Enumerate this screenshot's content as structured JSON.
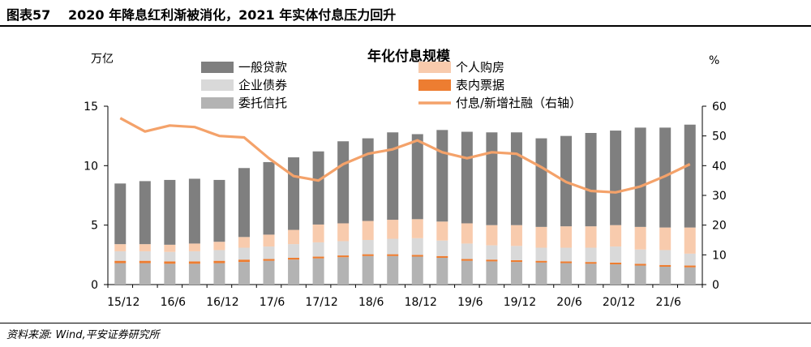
{
  "header": {
    "figure_label": "图表57",
    "figure_title": "2020 年降息红利渐被消化，2021 年实体付息压力回升"
  },
  "footer": {
    "source": "资料来源: Wind,平安证券研究所"
  },
  "chart_data": {
    "type": "bar",
    "stacked": true,
    "title": "年化付息规模",
    "y_left_unit": "万亿",
    "y_right_unit": "%",
    "ylim": [
      0,
      15
    ],
    "ylim_right": [
      0,
      60
    ],
    "yticks": [
      "0",
      "5",
      "10",
      "15"
    ],
    "yticks_right": [
      "0",
      "10",
      "20",
      "30",
      "40",
      "50",
      "60"
    ],
    "x_tick_labels": [
      "15/12",
      "16/6",
      "16/12",
      "17/6",
      "17/12",
      "18/6",
      "18/12",
      "19/6",
      "19/12",
      "20/6",
      "20/12",
      "21/6"
    ],
    "x_tick_every": 2,
    "grid": false,
    "legend": "top",
    "categories": [
      "15/12",
      "16/3",
      "16/6",
      "16/9",
      "16/12",
      "17/3",
      "17/6",
      "17/9",
      "17/12",
      "18/3",
      "18/6",
      "18/9",
      "18/12",
      "19/3",
      "19/6",
      "19/9",
      "19/12",
      "20/3",
      "20/6",
      "20/9",
      "20/12",
      "21/3",
      "21/6",
      "21/9"
    ],
    "series": [
      {
        "name": "委托信托",
        "color": "#b3b3b3",
        "values": [
          1.8,
          1.8,
          1.75,
          1.75,
          1.8,
          1.9,
          2.0,
          2.1,
          2.2,
          2.3,
          2.4,
          2.4,
          2.35,
          2.25,
          2.0,
          1.95,
          1.9,
          1.85,
          1.8,
          1.75,
          1.7,
          1.6,
          1.5,
          1.45
        ]
      },
      {
        "name": "表内票据",
        "color": "#ed7d31",
        "values": [
          0.2,
          0.2,
          0.2,
          0.2,
          0.2,
          0.2,
          0.15,
          0.15,
          0.15,
          0.15,
          0.15,
          0.15,
          0.15,
          0.15,
          0.15,
          0.15,
          0.15,
          0.15,
          0.15,
          0.15,
          0.15,
          0.15,
          0.15,
          0.15
        ]
      },
      {
        "name": "企业债券",
        "color": "#d9d9d9",
        "values": [
          0.8,
          0.8,
          0.8,
          0.85,
          0.9,
          1.0,
          1.05,
          1.15,
          1.2,
          1.2,
          1.2,
          1.3,
          1.4,
          1.3,
          1.3,
          1.2,
          1.2,
          1.1,
          1.15,
          1.2,
          1.35,
          1.2,
          1.25,
          1.0
        ]
      },
      {
        "name": "个人购房",
        "color": "#f8cbad",
        "values": [
          0.6,
          0.6,
          0.6,
          0.65,
          0.7,
          0.9,
          1.0,
          1.2,
          1.5,
          1.5,
          1.6,
          1.6,
          1.6,
          1.6,
          1.7,
          1.7,
          1.75,
          1.75,
          1.8,
          1.8,
          1.8,
          1.9,
          1.9,
          2.2
        ]
      },
      {
        "name": "一般贷款",
        "color": "#7f7f7f",
        "values": [
          5.1,
          5.3,
          5.45,
          5.45,
          5.2,
          5.8,
          6.1,
          6.1,
          6.15,
          6.9,
          6.95,
          7.35,
          7.15,
          7.7,
          7.7,
          7.8,
          7.8,
          7.45,
          7.6,
          7.85,
          7.95,
          8.35,
          8.4,
          8.65
        ]
      }
    ],
    "line_series": {
      "name": "付息/新增社融（右轴）",
      "axis": "right",
      "color": "#f4a26a",
      "values": [
        56.0,
        51.5,
        53.5,
        53.0,
        50.0,
        49.5,
        42.5,
        36.5,
        35.0,
        40.5,
        44.0,
        45.5,
        48.5,
        44.5,
        42.5,
        44.5,
        44.0,
        39.5,
        34.5,
        31.5,
        31.0,
        33.0,
        36.5,
        40.5
      ]
    },
    "legend_entries": [
      {
        "label": "一般贷款",
        "color": "#7f7f7f",
        "kind": "box"
      },
      {
        "label": "个人购房",
        "color": "#f8cbad",
        "kind": "box"
      },
      {
        "label": "企业债券",
        "color": "#d9d9d9",
        "kind": "box"
      },
      {
        "label": "表内票据",
        "color": "#ed7d31",
        "kind": "box"
      },
      {
        "label": "委托信托",
        "color": "#b3b3b3",
        "kind": "box"
      },
      {
        "label": "付息/新增社融（右轴）",
        "color": "#f4a26a",
        "kind": "line"
      }
    ]
  }
}
